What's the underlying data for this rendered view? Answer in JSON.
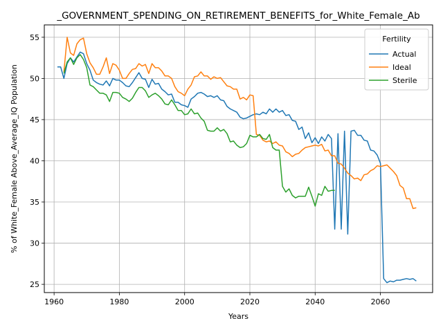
{
  "chart_data": {
    "type": "line",
    "title": "_GOVERNMENT_SPENDING_ON_RETIREMENT_BENEFITS_for_White_Female_Ab",
    "xlabel": "Years",
    "ylabel": "% of White_Female Above_Average_IQ Population",
    "xlim": [
      1957,
      2076
    ],
    "ylim": [
      24,
      56.5
    ],
    "xticks": [
      1960,
      1980,
      2000,
      2020,
      2040,
      2060
    ],
    "yticks": [
      25,
      30,
      35,
      40,
      45,
      50,
      55
    ],
    "grid": true,
    "legend": {
      "title": "Fertility",
      "placement": "top-right"
    },
    "series": [
      {
        "name": "Actual",
        "color": "#1f77b4",
        "points": [
          [
            1961,
            51.4
          ],
          [
            1962,
            51.4
          ],
          [
            1963,
            50.0
          ],
          [
            1964,
            51.8
          ],
          [
            1965,
            52.5
          ],
          [
            1966,
            52.0
          ],
          [
            1967,
            52.6
          ],
          [
            1968,
            53.2
          ],
          [
            1969,
            53.0
          ],
          [
            1970,
            51.8
          ],
          [
            1971,
            51.0
          ],
          [
            1972,
            49.8
          ],
          [
            1973,
            49.5
          ],
          [
            1974,
            49.3
          ],
          [
            1975,
            49.2
          ],
          [
            1976,
            49.7
          ],
          [
            1977,
            49.1
          ],
          [
            1978,
            50.0
          ],
          [
            1979,
            49.8
          ],
          [
            1980,
            49.8
          ],
          [
            1981,
            49.5
          ],
          [
            1982,
            49.1
          ],
          [
            1983,
            49.0
          ],
          [
            1984,
            49.5
          ],
          [
            1985,
            50.1
          ],
          [
            1986,
            50.7
          ],
          [
            1987,
            50.0
          ],
          [
            1988,
            49.9
          ],
          [
            1989,
            48.9
          ],
          [
            1990,
            49.9
          ],
          [
            1991,
            49.3
          ],
          [
            1992,
            49.4
          ],
          [
            1993,
            48.7
          ],
          [
            1994,
            48.4
          ],
          [
            1995,
            48.0
          ],
          [
            1996,
            48.1
          ],
          [
            1997,
            47.1
          ],
          [
            1998,
            47.1
          ],
          [
            1999,
            46.8
          ],
          [
            2000,
            46.7
          ],
          [
            2001,
            46.5
          ],
          [
            2002,
            47.5
          ],
          [
            2003,
            47.8
          ],
          [
            2004,
            48.2
          ],
          [
            2005,
            48.3
          ],
          [
            2006,
            48.1
          ],
          [
            2007,
            47.8
          ],
          [
            2008,
            47.9
          ],
          [
            2009,
            47.7
          ],
          [
            2010,
            47.9
          ],
          [
            2011,
            47.4
          ],
          [
            2012,
            47.3
          ],
          [
            2013,
            46.6
          ],
          [
            2014,
            46.3
          ],
          [
            2015,
            46.1
          ],
          [
            2016,
            45.9
          ],
          [
            2017,
            45.3
          ],
          [
            2018,
            45.1
          ],
          [
            2019,
            45.2
          ],
          [
            2020,
            45.4
          ],
          [
            2021,
            45.6
          ],
          [
            2022,
            45.7
          ],
          [
            2023,
            45.6
          ],
          [
            2024,
            45.9
          ],
          [
            2025,
            45.7
          ],
          [
            2026,
            46.3
          ],
          [
            2027,
            45.9
          ],
          [
            2028,
            46.3
          ],
          [
            2029,
            45.9
          ],
          [
            2030,
            46.1
          ],
          [
            2031,
            45.5
          ],
          [
            2032,
            45.6
          ],
          [
            2033,
            44.9
          ],
          [
            2034,
            44.8
          ],
          [
            2035,
            43.8
          ],
          [
            2036,
            44.1
          ],
          [
            2037,
            42.7
          ],
          [
            2038,
            43.4
          ],
          [
            2039,
            42.2
          ],
          [
            2040,
            42.8
          ],
          [
            2041,
            42.1
          ],
          [
            2042,
            42.9
          ],
          [
            2043,
            42.4
          ],
          [
            2044,
            43.2
          ],
          [
            2045,
            42.7
          ],
          [
            2046,
            31.7
          ],
          [
            2047,
            43.3
          ],
          [
            2048,
            31.7
          ],
          [
            2049,
            43.6
          ],
          [
            2050,
            31.1
          ],
          [
            2051,
            43.6
          ],
          [
            2052,
            43.7
          ],
          [
            2053,
            43.1
          ],
          [
            2054,
            43.1
          ],
          [
            2055,
            42.5
          ],
          [
            2056,
            42.4
          ],
          [
            2057,
            41.3
          ],
          [
            2058,
            41.2
          ],
          [
            2059,
            40.7
          ],
          [
            2060,
            39.7
          ],
          [
            2061,
            25.7
          ],
          [
            2062,
            25.2
          ],
          [
            2063,
            25.4
          ],
          [
            2064,
            25.3
          ],
          [
            2065,
            25.5
          ],
          [
            2066,
            25.5
          ],
          [
            2067,
            25.6
          ],
          [
            2068,
            25.7
          ],
          [
            2069,
            25.6
          ],
          [
            2070,
            25.7
          ],
          [
            2071,
            25.4
          ]
        ]
      },
      {
        "name": "Ideal",
        "color": "#ff7f0e",
        "points": [
          [
            1963,
            50.8
          ],
          [
            1964,
            55.0
          ],
          [
            1965,
            53.1
          ],
          [
            1966,
            52.8
          ],
          [
            1967,
            54.2
          ],
          [
            1968,
            54.7
          ],
          [
            1969,
            54.9
          ],
          [
            1970,
            53.0
          ],
          [
            1971,
            51.9
          ],
          [
            1972,
            51.3
          ],
          [
            1973,
            50.5
          ],
          [
            1974,
            50.5
          ],
          [
            1975,
            51.4
          ],
          [
            1976,
            52.5
          ],
          [
            1977,
            50.6
          ],
          [
            1978,
            51.8
          ],
          [
            1979,
            51.6
          ],
          [
            1980,
            51.0
          ],
          [
            1981,
            50.0
          ],
          [
            1982,
            50.0
          ],
          [
            1983,
            50.6
          ],
          [
            1984,
            51.1
          ],
          [
            1985,
            51.2
          ],
          [
            1986,
            51.8
          ],
          [
            1987,
            51.5
          ],
          [
            1988,
            51.7
          ],
          [
            1989,
            50.6
          ],
          [
            1990,
            51.8
          ],
          [
            1991,
            51.3
          ],
          [
            1992,
            51.3
          ],
          [
            1993,
            50.9
          ],
          [
            1994,
            50.3
          ],
          [
            1995,
            50.3
          ],
          [
            1996,
            50.0
          ],
          [
            1997,
            49.0
          ],
          [
            1998,
            48.4
          ],
          [
            1999,
            48.2
          ],
          [
            2000,
            47.9
          ],
          [
            2001,
            48.7
          ],
          [
            2002,
            49.2
          ],
          [
            2003,
            50.2
          ],
          [
            2004,
            50.3
          ],
          [
            2005,
            50.8
          ],
          [
            2006,
            50.3
          ],
          [
            2007,
            50.3
          ],
          [
            2008,
            49.9
          ],
          [
            2009,
            50.2
          ],
          [
            2010,
            50.0
          ],
          [
            2011,
            50.1
          ],
          [
            2012,
            49.6
          ],
          [
            2013,
            49.1
          ],
          [
            2014,
            49.0
          ],
          [
            2015,
            48.7
          ],
          [
            2016,
            48.7
          ],
          [
            2017,
            47.5
          ],
          [
            2018,
            47.7
          ],
          [
            2019,
            47.4
          ],
          [
            2020,
            48.0
          ],
          [
            2021,
            47.9
          ],
          [
            2022,
            43.2
          ],
          [
            2023,
            43.1
          ],
          [
            2024,
            42.5
          ],
          [
            2025,
            42.3
          ],
          [
            2026,
            42.4
          ],
          [
            2027,
            42.1
          ],
          [
            2028,
            42.3
          ],
          [
            2029,
            41.9
          ],
          [
            2030,
            41.8
          ],
          [
            2031,
            41.1
          ],
          [
            2032,
            40.9
          ],
          [
            2033,
            40.5
          ],
          [
            2034,
            40.8
          ],
          [
            2035,
            40.9
          ],
          [
            2036,
            41.3
          ],
          [
            2037,
            41.6
          ],
          [
            2038,
            41.7
          ],
          [
            2039,
            41.8
          ],
          [
            2040,
            41.9
          ],
          [
            2041,
            41.8
          ],
          [
            2042,
            42.0
          ],
          [
            2043,
            41.2
          ],
          [
            2044,
            41.3
          ],
          [
            2045,
            40.6
          ],
          [
            2046,
            40.6
          ],
          [
            2047,
            39.7
          ],
          [
            2048,
            39.6
          ],
          [
            2049,
            39.1
          ],
          [
            2050,
            38.5
          ],
          [
            2051,
            38.2
          ],
          [
            2052,
            37.8
          ],
          [
            2053,
            37.9
          ],
          [
            2054,
            37.6
          ],
          [
            2055,
            38.3
          ],
          [
            2056,
            38.4
          ],
          [
            2057,
            38.8
          ],
          [
            2058,
            39.0
          ],
          [
            2059,
            39.4
          ],
          [
            2060,
            39.3
          ],
          [
            2061,
            39.4
          ],
          [
            2062,
            39.5
          ],
          [
            2063,
            39.1
          ],
          [
            2064,
            38.7
          ],
          [
            2065,
            38.2
          ],
          [
            2066,
            37.0
          ],
          [
            2067,
            36.7
          ],
          [
            2068,
            35.4
          ],
          [
            2069,
            35.4
          ],
          [
            2070,
            34.2
          ],
          [
            2071,
            34.3
          ]
        ]
      },
      {
        "name": "Sterile",
        "color": "#2ca02c",
        "points": [
          [
            1963,
            50.6
          ],
          [
            1964,
            52.0
          ],
          [
            1965,
            52.5
          ],
          [
            1966,
            51.7
          ],
          [
            1967,
            52.5
          ],
          [
            1968,
            52.9
          ],
          [
            1969,
            52.3
          ],
          [
            1970,
            51.3
          ],
          [
            1971,
            49.2
          ],
          [
            1972,
            49.0
          ],
          [
            1973,
            48.6
          ],
          [
            1974,
            48.2
          ],
          [
            1975,
            48.2
          ],
          [
            1976,
            48.0
          ],
          [
            1977,
            47.2
          ],
          [
            1978,
            48.3
          ],
          [
            1979,
            48.3
          ],
          [
            1980,
            48.2
          ],
          [
            1981,
            47.7
          ],
          [
            1982,
            47.5
          ],
          [
            1983,
            47.2
          ],
          [
            1984,
            47.6
          ],
          [
            1985,
            48.3
          ],
          [
            1986,
            48.9
          ],
          [
            1987,
            48.9
          ],
          [
            1988,
            48.5
          ],
          [
            1989,
            47.7
          ],
          [
            1990,
            48.0
          ],
          [
            1991,
            48.2
          ],
          [
            1992,
            47.9
          ],
          [
            1993,
            47.5
          ],
          [
            1994,
            46.9
          ],
          [
            1995,
            46.8
          ],
          [
            1996,
            47.4
          ],
          [
            1997,
            46.8
          ],
          [
            1998,
            46.1
          ],
          [
            1999,
            46.1
          ],
          [
            2000,
            45.6
          ],
          [
            2001,
            45.7
          ],
          [
            2002,
            46.3
          ],
          [
            2003,
            45.7
          ],
          [
            2004,
            45.8
          ],
          [
            2005,
            45.2
          ],
          [
            2006,
            44.8
          ],
          [
            2007,
            43.7
          ],
          [
            2008,
            43.6
          ],
          [
            2009,
            43.6
          ],
          [
            2010,
            44.0
          ],
          [
            2011,
            43.6
          ],
          [
            2012,
            43.8
          ],
          [
            2013,
            43.3
          ],
          [
            2014,
            42.3
          ],
          [
            2015,
            42.4
          ],
          [
            2016,
            41.9
          ],
          [
            2017,
            41.6
          ],
          [
            2018,
            41.7
          ],
          [
            2019,
            42.1
          ],
          [
            2020,
            43.1
          ],
          [
            2021,
            42.9
          ],
          [
            2022,
            42.9
          ],
          [
            2023,
            43.2
          ],
          [
            2024,
            42.7
          ],
          [
            2025,
            42.6
          ],
          [
            2026,
            43.2
          ],
          [
            2027,
            41.6
          ],
          [
            2028,
            41.3
          ],
          [
            2029,
            41.3
          ],
          [
            2030,
            36.9
          ],
          [
            2031,
            36.2
          ],
          [
            2032,
            36.6
          ],
          [
            2033,
            35.8
          ],
          [
            2034,
            35.5
          ],
          [
            2035,
            35.7
          ],
          [
            2036,
            35.7
          ],
          [
            2037,
            35.7
          ],
          [
            2038,
            36.8
          ],
          [
            2039,
            35.7
          ],
          [
            2040,
            34.5
          ],
          [
            2041,
            36.0
          ],
          [
            2042,
            35.8
          ],
          [
            2043,
            36.9
          ],
          [
            2044,
            36.3
          ],
          [
            2045,
            36.4
          ],
          [
            2046,
            36.4
          ]
        ]
      }
    ]
  }
}
